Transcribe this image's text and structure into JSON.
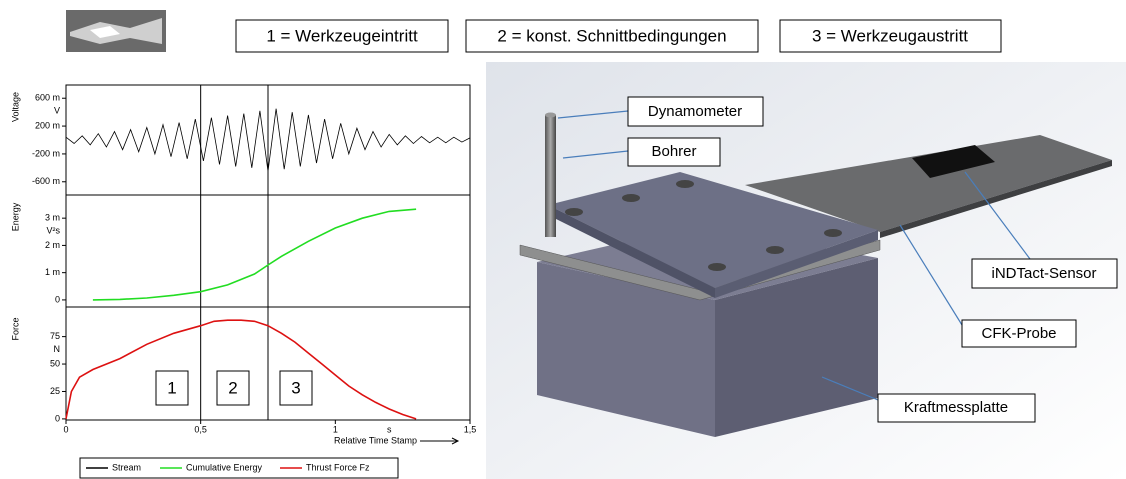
{
  "header": {
    "labels": [
      "1 = Werkzeugeintritt",
      "2 = konst. Schnittbedingungen",
      "3 = Werkzeugaustritt"
    ]
  },
  "chart_data": [
    {
      "type": "line",
      "ylabel": "Voltage",
      "unit": "V",
      "xlim": [
        0,
        1.5
      ],
      "ylim": [
        -0.79,
        0.79
      ],
      "yticks": [
        {
          "value": 0.6,
          "label": "600 m"
        },
        {
          "value": 0.2,
          "label": "200 m"
        },
        {
          "value": -0.2,
          "label": "-200 m"
        },
        {
          "value": -0.6,
          "label": "-600 m"
        }
      ],
      "vlines": [
        0.5,
        0.75
      ],
      "series": [
        {
          "name": "Stream",
          "color": "#000000",
          "x": [
            0,
            0.03,
            0.06,
            0.09,
            0.12,
            0.15,
            0.18,
            0.21,
            0.24,
            0.27,
            0.3,
            0.33,
            0.36,
            0.39,
            0.42,
            0.45,
            0.48,
            0.51,
            0.54,
            0.57,
            0.6,
            0.63,
            0.66,
            0.69,
            0.72,
            0.75,
            0.78,
            0.81,
            0.84,
            0.87,
            0.9,
            0.93,
            0.96,
            0.99,
            1.02,
            1.05,
            1.08,
            1.11,
            1.14,
            1.17,
            1.2,
            1.23,
            1.26,
            1.29,
            1.32,
            1.35,
            1.38,
            1.41,
            1.44,
            1.47,
            1.5
          ],
          "values": [
            0.04,
            -0.05,
            0.06,
            -0.07,
            0.09,
            -0.1,
            0.12,
            -0.14,
            0.15,
            -0.17,
            0.18,
            -0.2,
            0.22,
            -0.24,
            0.25,
            -0.27,
            0.3,
            -0.3,
            0.32,
            -0.35,
            0.35,
            -0.38,
            0.38,
            -0.4,
            0.42,
            -0.45,
            0.45,
            -0.42,
            0.4,
            -0.38,
            0.36,
            -0.33,
            0.3,
            -0.27,
            0.24,
            -0.2,
            0.17,
            -0.14,
            0.12,
            -0.1,
            0.08,
            -0.07,
            0.06,
            -0.05,
            0.05,
            -0.04,
            0.04,
            -0.04,
            0.04,
            -0.03,
            0.03
          ]
        }
      ]
    },
    {
      "type": "line",
      "ylabel": "Energy",
      "unit": "V²s",
      "xlim": [
        0,
        1.5
      ],
      "ylim": [
        -0.00026,
        0.00385
      ],
      "yticks": [
        {
          "value": 0.003,
          "label": "3 m"
        },
        {
          "value": 0.002,
          "label": "2 m"
        },
        {
          "value": 0.001,
          "label": "1 m"
        },
        0
      ],
      "vlines": [
        0.5,
        0.75
      ],
      "series": [
        {
          "name": "Cumulative Energy",
          "color": "#22dd22",
          "x": [
            0.1,
            0.2,
            0.3,
            0.4,
            0.5,
            0.6,
            0.7,
            0.75,
            0.8,
            0.9,
            1.0,
            1.1,
            1.2,
            1.3
          ],
          "values": [
            0,
            2e-05,
            7e-05,
            0.00017,
            0.0003,
            0.00055,
            0.00095,
            0.00128,
            0.0016,
            0.00215,
            0.00264,
            0.003,
            0.00325,
            0.00333
          ]
        }
      ]
    },
    {
      "type": "line",
      "ylabel": "Force",
      "unit": "N",
      "xlabel": "Relative Time Stamp",
      "xunit": "s",
      "xlim": [
        0,
        1.5
      ],
      "ylim": [
        -1,
        102
      ],
      "yticks": [
        75,
        50,
        25,
        0
      ],
      "xticks": [
        0,
        {
          "value": 0.5,
          "label": "0,5"
        },
        1,
        {
          "value": 1.5,
          "label": "1,5"
        }
      ],
      "vlines": [
        0.5,
        0.75
      ],
      "annotations": [
        "1",
        "2",
        "3"
      ],
      "series": [
        {
          "name": "Thrust Force Fz",
          "color": "#dd1111",
          "x": [
            0,
            0.02,
            0.05,
            0.1,
            0.2,
            0.3,
            0.4,
            0.5,
            0.55,
            0.6,
            0.65,
            0.7,
            0.75,
            0.8,
            0.85,
            0.9,
            0.95,
            1.0,
            1.05,
            1.1,
            1.15,
            1.2,
            1.25,
            1.3
          ],
          "values": [
            0,
            25,
            38,
            45,
            55,
            68,
            78,
            85,
            89,
            90,
            90,
            89,
            85,
            78,
            70,
            60,
            50,
            40,
            30,
            22,
            15,
            9,
            4,
            0
          ]
        }
      ]
    }
  ],
  "diagram": {
    "labels": [
      "Dynamometer",
      "Bohrer",
      "iNDTact-Sensor",
      "CFK-Probe",
      "Kraftmessplatte"
    ]
  }
}
